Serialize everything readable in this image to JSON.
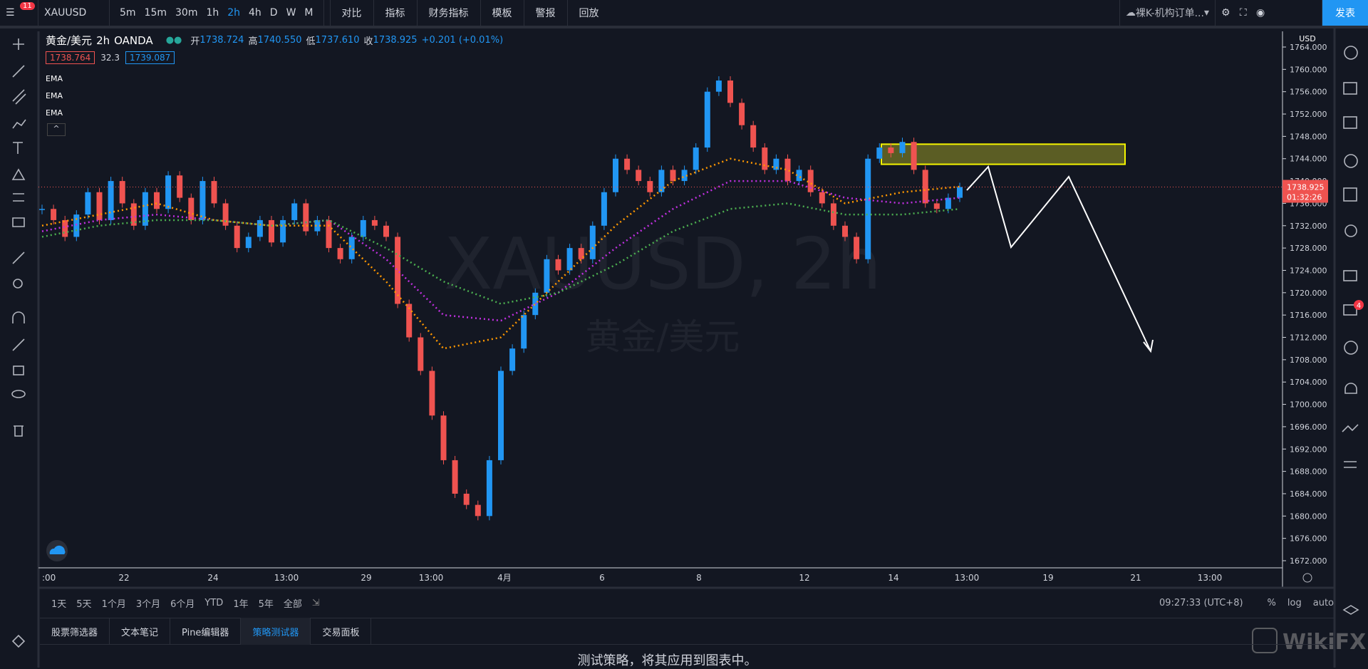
{
  "toolbar": {
    "badge": "11",
    "symbol": "XAUUSD",
    "timeframes": [
      "5m",
      "15m",
      "30m",
      "1h",
      "2h",
      "4h",
      "D",
      "W",
      "M"
    ],
    "active_timeframe": "2h",
    "tools": [
      "对比",
      "指标",
      "财务指标",
      "模板",
      "警报",
      "回放"
    ],
    "layout": "裸K-机构订单...",
    "publish": "发表"
  },
  "legend": {
    "name": "黄金/美元",
    "interval": "2h",
    "source": "OANDA",
    "open_label": "开",
    "open": "1738.724",
    "high_label": "高",
    "high": "1740.550",
    "low_label": "低",
    "low": "1737.610",
    "close_label": "收",
    "close": "1738.925",
    "change": "+0.201 (+0.01%)",
    "bid": "1738.764",
    "spread": "32.3",
    "ask": "1739.087",
    "indicators": [
      "EMA",
      "EMA",
      "EMA"
    ]
  },
  "watermark": {
    "title": "XAUUSD, 2h",
    "subtitle": "黄金/美元"
  },
  "chart": {
    "closes": [
      1735,
      1733,
      1730,
      1734,
      1738,
      1733,
      1740,
      1736,
      1732,
      1738,
      1735,
      1741,
      1737,
      1733,
      1740,
      1736,
      1732,
      1728,
      1730,
      1733,
      1729,
      1733,
      1736,
      1731,
      1733,
      1728,
      1726,
      1730,
      1733,
      1732,
      1730,
      1718,
      1712,
      1706,
      1698,
      1690,
      1684,
      1682,
      1680,
      1690,
      1706,
      1710,
      1716,
      1720,
      1726,
      1724,
      1728,
      1726,
      1732,
      1738,
      1744,
      1742,
      1740,
      1738,
      1742,
      1740,
      1742,
      1746,
      1756,
      1758,
      1754,
      1750,
      1746,
      1742,
      1744,
      1740,
      1742,
      1738,
      1736,
      1732,
      1730,
      1726,
      1744,
      1746,
      1745,
      1747,
      1742,
      1736,
      1735,
      1737,
      1738.925
    ],
    "emas": [
      {
        "color": "#ff9800",
        "values": [
          1732,
          1734,
          1736,
          1733,
          1732,
          1732,
          1722,
          1710,
          1712,
          1722,
          1732,
          1740,
          1744,
          1742,
          1736,
          1738,
          1739
        ]
      },
      {
        "color": "#c030e0",
        "values": [
          1731,
          1733,
          1734,
          1733,
          1732,
          1733,
          1726,
          1716,
          1715,
          1720,
          1728,
          1735,
          1740,
          1740,
          1737,
          1736,
          1737
        ]
      },
      {
        "color": "#4caf50",
        "values": [
          1730,
          1732,
          1733,
          1733,
          1732,
          1733,
          1728,
          1722,
          1718,
          1720,
          1725,
          1731,
          1735,
          1736,
          1734,
          1734,
          1735
        ]
      }
    ],
    "zone": [
      1746.6,
      1743
    ],
    "last_price": {
      "value": 1738.925,
      "label": "1738.925",
      "countdown": "01:32:26"
    }
  },
  "price_axis": {
    "currency": "USD",
    "ticks": [
      {
        "value": 1764,
        "label": "1764.000"
      },
      {
        "value": 1760,
        "label": "1760.000"
      },
      {
        "value": 1756,
        "label": "1756.000"
      },
      {
        "value": 1752,
        "label": "1752.000"
      },
      {
        "value": 1748,
        "label": "1748.000"
      },
      {
        "value": 1744,
        "label": "1744.000"
      },
      {
        "value": 1740,
        "label": "1740.000"
      },
      {
        "value": 1736,
        "label": "1736.000"
      },
      {
        "value": 1732,
        "label": "1732.000"
      },
      {
        "value": 1728,
        "label": "1728.000"
      },
      {
        "value": 1724,
        "label": "1724.000"
      },
      {
        "value": 1720,
        "label": "1720.000"
      },
      {
        "value": 1716,
        "label": "1716.000"
      },
      {
        "value": 1712,
        "label": "1712.000"
      },
      {
        "value": 1708,
        "label": "1708.000"
      },
      {
        "value": 1704,
        "label": "1704.000"
      },
      {
        "value": 1700,
        "label": "1700.000"
      },
      {
        "value": 1696,
        "label": "1696.000"
      },
      {
        "value": 1692,
        "label": "1692.000"
      },
      {
        "value": 1688,
        "label": "1688.000"
      },
      {
        "value": 1684,
        "label": "1684.000"
      },
      {
        "value": 1680,
        "label": "1680.000"
      },
      {
        "value": 1676,
        "label": "1676.000"
      },
      {
        "value": 1672,
        "label": "1672.000"
      }
    ]
  },
  "time_axis": [
    ":00",
    "22",
    "24",
    "13:00",
    "29",
    "13:00",
    "4月",
    "6",
    "8",
    "12",
    "14",
    "13:00",
    "19",
    "21",
    "13:00"
  ],
  "bottom_bar": {
    "ranges": [
      "1天",
      "5天",
      "1个月",
      "3个月",
      "6个月",
      "YTD",
      "1年",
      "5年",
      "全部"
    ],
    "clock": "09:27:33 (UTC+8)",
    "options": [
      "%",
      "log",
      "auto"
    ]
  },
  "tabs": {
    "items": [
      "股票筛选器",
      "文本笔记",
      "Pine编辑器",
      "策略测试器",
      "交易面板"
    ],
    "active": "策略测试器"
  },
  "message": "测试策略，将其应用到图表中。",
  "brand": "WikiFX"
}
